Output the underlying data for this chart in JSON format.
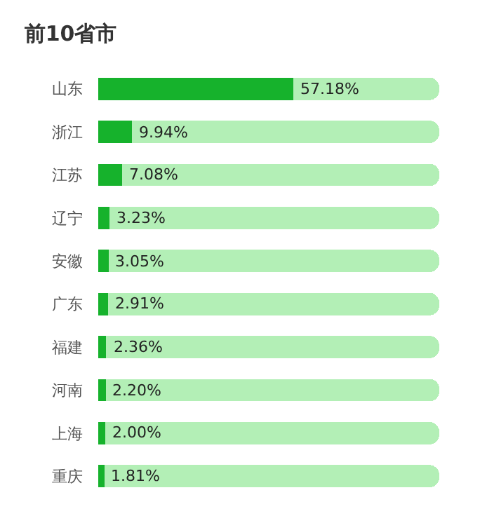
{
  "chart_data": {
    "type": "bar",
    "orientation": "horizontal",
    "stacked": true,
    "title": "前10省市",
    "categories": [
      "山东",
      "浙江",
      "江苏",
      "辽宁",
      "安徽",
      "广东",
      "福建",
      "河南",
      "上海",
      "重庆"
    ],
    "series": [
      {
        "color": "#16b22c",
        "values": [
          57.18,
          9.94,
          7.08,
          3.23,
          3.05,
          2.91,
          2.36,
          2.2,
          2.0,
          1.81
        ],
        "value_labels": [
          "57.18%",
          "9.94%",
          "7.08%",
          "3.23%",
          "3.05%",
          "2.91%",
          "2.36%",
          "2.20%",
          "2.00%",
          "1.81%"
        ]
      },
      {
        "color": "#b3efb6",
        "values": [
          42.82,
          90.06,
          92.92,
          96.77,
          96.95,
          97.09,
          97.64,
          97.8,
          98.0,
          98.19
        ]
      }
    ],
    "xlim": [
      0,
      100
    ],
    "tick_labels": "y",
    "legend": false
  }
}
